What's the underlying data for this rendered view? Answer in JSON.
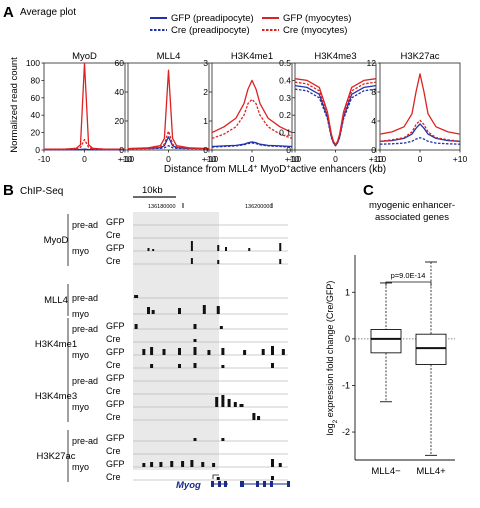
{
  "panels": {
    "a": {
      "letter": "A",
      "title": "Average plot"
    },
    "b": {
      "letter": "B",
      "title": "ChIP-Seq"
    },
    "c": {
      "letter": "C"
    }
  },
  "legend": [
    {
      "label": "GFP (preadipocyte)",
      "color": "#2233aa",
      "dash": false
    },
    {
      "label": "Cre (preadipocyte)",
      "color": "#2233aa",
      "dash": true
    },
    {
      "label": "GFP (myocytes)",
      "color": "#dd2222",
      "dash": false
    },
    {
      "label": "Cre (myocytes)",
      "color": "#dd2222",
      "dash": true
    }
  ],
  "colors": {
    "blue": "#2233aa",
    "red": "#dd2222",
    "purple": "#7a2a8a",
    "track": "#111111",
    "shade": "#e9e9e9",
    "gene": "#1a2a88"
  },
  "panel_a": {
    "ylabel": "Normalized read count",
    "xlabel_parts": [
      "Distance from MLL4",
      "+",
      " MyoD",
      "+",
      "active enhancers (kb)"
    ],
    "xticks": [
      "-10",
      "0",
      "+10"
    ]
  },
  "panel_b": {
    "scale_label": "10kb",
    "coord1": "136180000",
    "coord2": "136200000",
    "gene_label": "Myog",
    "groups": [
      {
        "name": "MyoD",
        "rows": [
          [
            "pre-ad",
            "GFP"
          ],
          [
            "",
            "Cre"
          ],
          [
            "myo",
            "GFP"
          ],
          [
            "",
            "Cre"
          ]
        ]
      },
      {
        "name": "MLL4",
        "rows": [
          [
            "pre-ad",
            ""
          ],
          [
            "myo",
            ""
          ]
        ]
      },
      {
        "name": "H3K4me1",
        "rows": [
          [
            "pre-ad",
            "GFP"
          ],
          [
            "",
            "Cre"
          ],
          [
            "myo",
            "GFP"
          ],
          [
            "",
            "Cre"
          ]
        ]
      },
      {
        "name": "H3K4me3",
        "rows": [
          [
            "pre-ad",
            "GFP"
          ],
          [
            "",
            "Cre"
          ],
          [
            "myo",
            "GFP"
          ],
          [
            "",
            "Cre"
          ]
        ]
      },
      {
        "name": "H3K27ac",
        "rows": [
          [
            "pre-ad",
            "GFP"
          ],
          [
            "",
            "Cre"
          ],
          [
            "myo",
            "GFP"
          ],
          [
            "",
            "Cre"
          ]
        ]
      }
    ]
  },
  "panel_c": {
    "title_lines": [
      "myogenic enhancer-",
      "associated genes"
    ],
    "pvalue": "p=9.0E-14",
    "ylabel": "log2 expression fold change (Cre/GFP)",
    "xcategories": [
      "MLL4−",
      "MLL4+"
    ]
  },
  "chart_data": [
    {
      "type": "line",
      "title": "MyoD",
      "x": [
        -10,
        -5,
        -2,
        -1,
        0,
        1,
        2,
        5,
        10
      ],
      "ylim": [
        0,
        100
      ],
      "yticks": [
        0,
        20,
        40,
        60,
        80,
        100
      ],
      "xlim": [
        -10,
        10
      ],
      "series": [
        {
          "name": "GFP (myocytes)",
          "values": [
            1,
            1,
            2,
            6,
            100,
            6,
            2,
            1,
            1
          ]
        },
        {
          "name": "Cre (myocytes)",
          "values": [
            0.5,
            0.5,
            1,
            3,
            12,
            3,
            1,
            0.5,
            0.5
          ]
        },
        {
          "name": "GFP (preadipocyte)",
          "values": [
            0.3,
            0.3,
            0.4,
            0.6,
            1,
            0.6,
            0.4,
            0.3,
            0.3
          ]
        },
        {
          "name": "Cre (preadipocyte)",
          "values": [
            0.3,
            0.3,
            0.4,
            0.5,
            0.8,
            0.5,
            0.4,
            0.3,
            0.3
          ]
        }
      ]
    },
    {
      "type": "line",
      "title": "MLL4",
      "x": [
        -10,
        -5,
        -2,
        -1,
        0,
        1,
        2,
        5,
        10
      ],
      "ylim": [
        0,
        60
      ],
      "yticks": [
        0,
        20,
        40,
        60
      ],
      "xlim": [
        -10,
        10
      ],
      "series": [
        {
          "name": "GFP (myocytes)",
          "values": [
            1,
            1.5,
            3,
            8,
            55,
            8,
            3,
            1.5,
            1
          ]
        },
        {
          "name": "Cre (myocytes)",
          "values": [
            1,
            1.2,
            2,
            4,
            13,
            4,
            2,
            1.2,
            1
          ]
        },
        {
          "name": "GFP (preadipocyte)",
          "values": [
            1,
            1.1,
            1.6,
            3,
            9,
            3,
            1.6,
            1.1,
            1
          ]
        },
        {
          "name": "Cre (preadipocyte)",
          "values": [
            1,
            1,
            1.2,
            1.5,
            3,
            1.5,
            1.2,
            1,
            1
          ]
        }
      ]
    },
    {
      "type": "line",
      "title": "H3K4me1",
      "x": [
        -10,
        -7,
        -4,
        -2,
        -1,
        0,
        1,
        2,
        4,
        7,
        10
      ],
      "ylim": [
        0,
        3
      ],
      "yticks": [
        0,
        1,
        2,
        3
      ],
      "xlim": [
        -10,
        10
      ],
      "series": [
        {
          "name": "GFP (myocytes)",
          "values": [
            0.6,
            0.8,
            1.1,
            1.6,
            2.1,
            2.4,
            2.1,
            1.6,
            1.1,
            0.8,
            0.6
          ]
        },
        {
          "name": "Cre (myocytes)",
          "values": [
            0.4,
            0.55,
            0.8,
            1.2,
            1.6,
            1.75,
            1.6,
            1.2,
            0.8,
            0.55,
            0.4
          ]
        },
        {
          "name": "GFP (preadipocyte)",
          "values": [
            0.12,
            0.14,
            0.16,
            0.2,
            0.25,
            0.28,
            0.25,
            0.2,
            0.16,
            0.14,
            0.12
          ]
        },
        {
          "name": "Cre (preadipocyte)",
          "values": [
            0.1,
            0.12,
            0.14,
            0.18,
            0.22,
            0.24,
            0.22,
            0.18,
            0.14,
            0.12,
            0.1
          ]
        }
      ]
    },
    {
      "type": "line",
      "title": "H3K4me3",
      "x": [
        -10,
        -7,
        -4,
        -2,
        -1,
        -0.5,
        0,
        0.5,
        1,
        2,
        4,
        7,
        10
      ],
      "ylim": [
        0,
        0.5
      ],
      "yticks": [
        0,
        0.1,
        0.2,
        0.3,
        0.4,
        0.5
      ],
      "xlim": [
        -10,
        10
      ],
      "series": [
        {
          "name": "GFP (myocytes)",
          "values": [
            0.41,
            0.4,
            0.36,
            0.22,
            0.09,
            0.05,
            0.03,
            0.05,
            0.09,
            0.22,
            0.36,
            0.4,
            0.41
          ]
        },
        {
          "name": "Cre (myocytes)",
          "values": [
            0.39,
            0.38,
            0.34,
            0.2,
            0.08,
            0.045,
            0.03,
            0.045,
            0.08,
            0.2,
            0.34,
            0.38,
            0.39
          ]
        },
        {
          "name": "GFP (preadipocyte)",
          "values": [
            0.37,
            0.36,
            0.32,
            0.19,
            0.075,
            0.04,
            0.025,
            0.04,
            0.075,
            0.19,
            0.32,
            0.36,
            0.37
          ]
        },
        {
          "name": "Cre (preadipocyte)",
          "values": [
            0.35,
            0.34,
            0.3,
            0.18,
            0.07,
            0.04,
            0.025,
            0.04,
            0.07,
            0.18,
            0.3,
            0.34,
            0.35
          ]
        }
      ]
    },
    {
      "type": "line",
      "title": "H3K27ac",
      "x": [
        -10,
        -7,
        -4,
        -2,
        -1,
        0,
        1,
        2,
        4,
        7,
        10
      ],
      "ylim": [
        0,
        12
      ],
      "yticks": [
        0,
        4,
        8,
        12
      ],
      "xlim": [
        -10,
        10
      ],
      "series": [
        {
          "name": "GFP (myocytes)",
          "values": [
            2.2,
            2.5,
            3.2,
            5,
            8,
            10.5,
            8,
            5,
            3.2,
            2.5,
            2.2
          ]
        },
        {
          "name": "Cre (myocytes)",
          "values": [
            1.2,
            1.4,
            1.7,
            2.5,
            3.5,
            4.1,
            3.5,
            2.5,
            1.7,
            1.4,
            1.2
          ]
        },
        {
          "name": "GFP (preadipocyte)",
          "values": [
            1.2,
            1.3,
            1.6,
            2.2,
            3.0,
            3.6,
            3.0,
            2.2,
            1.6,
            1.3,
            1.2
          ]
        },
        {
          "name": "Cre (preadipocyte)",
          "values": [
            0.8,
            0.85,
            0.95,
            1.2,
            1.5,
            1.7,
            1.5,
            1.2,
            0.95,
            0.85,
            0.8
          ]
        }
      ]
    },
    {
      "type": "box",
      "title": "myogenic enhancer-associated genes",
      "categories": [
        "MLL4−",
        "MLL4+"
      ],
      "ylim": [
        -2.6,
        1.8
      ],
      "yticks": [
        -2,
        -1,
        0,
        1
      ],
      "boxes": [
        {
          "name": "MLL4−",
          "whisker_low": -1.35,
          "q1": -0.3,
          "median": 0.0,
          "q3": 0.2,
          "whisker_high": 1.2
        },
        {
          "name": "MLL4+",
          "whisker_low": -2.5,
          "q1": -0.55,
          "median": -0.2,
          "q3": 0.1,
          "whisker_high": 1.65
        }
      ]
    }
  ]
}
